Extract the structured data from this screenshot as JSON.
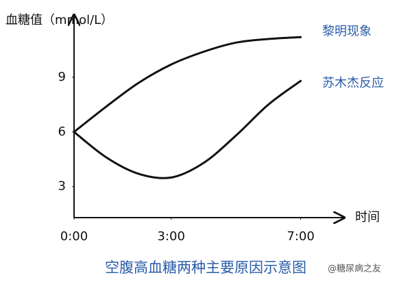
{
  "chart_data": {
    "type": "line",
    "title": "空腹高血糖两种主要原因示意图",
    "y_label": "血糖值（mmol/L）",
    "x_label": "时间",
    "x": [
      0,
      1,
      2,
      3,
      4,
      5,
      6,
      7
    ],
    "series": [
      {
        "name": "黎明现象",
        "color": "#111111",
        "values": [
          6,
          7.4,
          8.7,
          9.7,
          10.4,
          10.9,
          11.1,
          11.2
        ]
      },
      {
        "name": "苏木杰反应",
        "color": "#111111",
        "values": [
          6,
          4.6,
          3.7,
          3.5,
          4.3,
          5.8,
          7.5,
          8.8
        ]
      }
    ],
    "xlim": [
      0,
      8.3
    ],
    "xticks": [
      {
        "value": 0,
        "label": "0:00"
      },
      {
        "value": 3,
        "label": "3:00"
      },
      {
        "value": 7,
        "label": "7:00"
      }
    ],
    "ylim": [
      1.3,
      12.3
    ],
    "yticks": [
      3,
      6,
      9
    ],
    "annotations": [
      "@糖尿病之友"
    ]
  }
}
